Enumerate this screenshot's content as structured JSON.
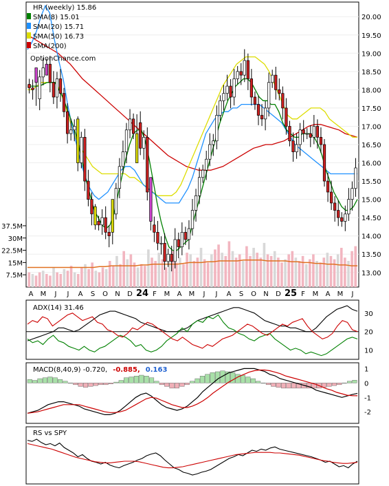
{
  "chart_data": [
    {
      "type": "candlestick",
      "title": "HR (weekly) 15.86",
      "watermark": "OptionChance.com",
      "legend": [
        {
          "label": "SMA(8) 15.01",
          "color": "#008000"
        },
        {
          "label": "SMA(20) 15.71",
          "color": "#1e90ff"
        },
        {
          "label": "SMA(50) 16.73",
          "color": "#dddd00"
        },
        {
          "label": "SMA(200)",
          "color": "#cc0000"
        }
      ],
      "y_ticks": [
        "20.00",
        "19.50",
        "19.00",
        "18.50",
        "18.00",
        "17.50",
        "17.00",
        "16.50",
        "16.00",
        "15.50",
        "15.00",
        "14.50",
        "14.00",
        "13.50",
        "13.00"
      ],
      "ylim": [
        12.6,
        20.4
      ],
      "close": [
        18.05,
        18.0,
        17.75,
        18.35,
        18.6,
        18.7,
        18.2,
        17.8,
        18.3,
        17.9,
        17.4,
        16.8,
        16.9,
        17.0,
        16.0,
        16.7,
        15.5,
        15.0,
        14.6,
        14.4,
        14.3,
        14.5,
        14.1,
        14.0,
        14.6,
        15.3,
        15.9,
        16.3,
        16.9,
        17.2,
        16.8,
        17.1,
        16.4,
        16.7,
        15.2,
        14.3,
        14.1,
        13.8,
        13.8,
        13.3,
        13.5,
        13.3,
        13.9,
        13.7,
        14.1,
        13.9,
        14.2,
        14.7,
        15.1,
        15.6,
        15.8,
        16.1,
        16.5,
        16.6,
        17.3,
        17.7,
        17.9,
        18.1,
        17.8,
        18.3,
        18.5,
        18.4,
        18.8,
        18.3,
        17.8,
        17.6,
        17.3,
        17.2,
        17.5,
        18.2,
        18.4,
        18.0,
        17.9,
        17.5,
        17.0,
        16.6,
        16.3,
        16.5,
        16.9,
        16.8,
        16.8,
        16.7,
        17.0,
        16.7,
        16.5,
        15.5,
        15.2,
        14.9,
        14.7,
        14.5,
        14.4,
        14.6,
        15.0,
        15.3,
        15.86
      ],
      "sma8": [
        18.1,
        18.1,
        18.1,
        18.1,
        18.15,
        18.2,
        18.2,
        18.2,
        18.0,
        17.8,
        17.5,
        17.2,
        16.9,
        16.5,
        16.0,
        15.5,
        15.1,
        14.7,
        14.5,
        14.3,
        14.2,
        14.3,
        14.6,
        15.1,
        15.6,
        16.1,
        16.5,
        16.8,
        16.9,
        16.9,
        16.6,
        16.1,
        15.5,
        14.9,
        14.4,
        14.0,
        13.7,
        13.6,
        13.6,
        13.7,
        13.8,
        13.9,
        14.3,
        14.7,
        15.1,
        15.5,
        15.9,
        16.3,
        16.7,
        17.1,
        17.4,
        17.7,
        17.9,
        18.1,
        18.2,
        18.3,
        18.3,
        18.2,
        18.0,
        17.8,
        17.7,
        17.7,
        17.6,
        17.6,
        17.4,
        17.1,
        16.9,
        16.8,
        16.7,
        16.7,
        16.8,
        16.8,
        16.8,
        16.7,
        16.5,
        16.2,
        15.8,
        15.5,
        15.2,
        15.0,
        14.8,
        14.7,
        14.7,
        14.8,
        15.0
      ],
      "sma20": [
        19.1,
        19.3,
        19.6,
        20.0,
        20.3,
        20.1,
        19.4,
        18.8,
        18.3,
        17.6,
        17.0,
        16.5,
        16.0,
        15.6,
        15.3,
        15.1,
        15.0,
        15.1,
        15.2,
        15.4,
        15.6,
        15.8,
        15.9,
        15.9,
        15.8,
        15.6,
        15.4,
        15.3,
        15.2,
        15.1,
        15.0,
        14.9,
        14.9,
        14.9,
        14.9,
        15.1,
        15.3,
        15.6,
        16.0,
        16.4,
        16.8,
        17.0,
        17.2,
        17.3,
        17.4,
        17.4,
        17.5,
        17.5,
        17.6,
        17.6,
        17.6,
        17.6,
        17.6,
        17.5,
        17.4,
        17.3,
        17.2,
        17.1,
        16.9,
        16.7,
        16.5,
        16.4,
        16.3,
        16.2,
        16.1,
        16.0,
        15.9,
        15.8,
        15.7,
        15.7,
        15.7,
        15.7,
        15.7,
        15.7,
        15.7
      ],
      "sma50": [
        18.0,
        18.0,
        18.1,
        18.2,
        18.2,
        18.2,
        18.2,
        18.0,
        17.6,
        17.2,
        16.8,
        16.5,
        16.3,
        16.1,
        15.9,
        15.8,
        15.7,
        15.7,
        15.7,
        15.7,
        15.7,
        15.7,
        15.6,
        15.6,
        15.5,
        15.4,
        15.3,
        15.2,
        15.1,
        15.1,
        15.1,
        15.1,
        15.2,
        15.4,
        15.7,
        16.0,
        16.3,
        16.6,
        16.9,
        17.2,
        17.5,
        17.8,
        18.1,
        18.3,
        18.5,
        18.7,
        18.8,
        18.9,
        18.9,
        18.9,
        18.8,
        18.7,
        18.5,
        18.2,
        17.9,
        17.6,
        17.3,
        17.2,
        17.2,
        17.3,
        17.4,
        17.5,
        17.5,
        17.5,
        17.4,
        17.2,
        17.1,
        17.0,
        16.9,
        16.8,
        16.7,
        16.7
      ],
      "sma200": [
        19.5,
        19.4,
        19.3,
        19.2,
        19.1,
        19.0,
        18.85,
        18.7,
        18.5,
        18.3,
        18.15,
        18.0,
        17.85,
        17.7,
        17.55,
        17.4,
        17.25,
        17.1,
        16.95,
        16.8,
        16.65,
        16.5,
        16.35,
        16.2,
        16.1,
        16.0,
        15.9,
        15.85,
        15.8,
        15.8,
        15.8,
        15.85,
        15.9,
        16.0,
        16.1,
        16.2,
        16.3,
        16.4,
        16.45,
        16.5,
        16.5,
        16.55,
        16.6,
        16.7,
        16.8,
        16.9,
        17.0,
        17.05,
        17.05,
        17.0,
        16.95,
        16.9,
        16.8,
        16.75,
        16.7
      ],
      "markers": [
        {
          "index": 14,
          "open": 17.2,
          "close": 16.0,
          "color": "#dddd00"
        },
        {
          "index": 19,
          "open": 14.8,
          "close": 14.3,
          "color": "#dddd00"
        },
        {
          "index": 24,
          "open": 14.1,
          "close": 15.0,
          "color": "#dddd00"
        },
        {
          "index": 31,
          "open": 16.8,
          "close": 16.0,
          "color": "#dddd00"
        },
        {
          "index": 35,
          "open": 15.6,
          "close": 14.4,
          "color": "#cc44cc"
        },
        {
          "index": 2,
          "open": 18.6,
          "close": 18.2,
          "color": "#cc44cc"
        },
        {
          "index": 5,
          "open": 18.7,
          "close": 18.4,
          "color": "#cc44cc"
        }
      ]
    },
    {
      "type": "bar",
      "title": "Volume",
      "y_ticks": [
        "37.5M",
        "30M",
        "22.5M",
        "15M",
        "7.5M"
      ],
      "ylim": [
        0,
        40
      ],
      "values": [
        9,
        8,
        7,
        9,
        10,
        8,
        7,
        12,
        9,
        8,
        11,
        10,
        13,
        9,
        8,
        12,
        14,
        11,
        15,
        10,
        9,
        12,
        11,
        16,
        13,
        19,
        14,
        22,
        17,
        20,
        15,
        12,
        14,
        13,
        23,
        18,
        16,
        21,
        17,
        12,
        19,
        22,
        15,
        18,
        14,
        21,
        20,
        16,
        18,
        24,
        17,
        15,
        20,
        23,
        26,
        21,
        19,
        28,
        22,
        18,
        20,
        16,
        25,
        19,
        24,
        21,
        18,
        27,
        20,
        19,
        22,
        18,
        15,
        17,
        20,
        22,
        18,
        16,
        19,
        14,
        17,
        20,
        16,
        15,
        18,
        21,
        19,
        17,
        20,
        24,
        18,
        16,
        22,
        25
      ],
      "sma": [
        12,
        12,
        12,
        12,
        12,
        12,
        12,
        12,
        12,
        12,
        12,
        12,
        12.5,
        12.5,
        13,
        13,
        13,
        13,
        13,
        13.5,
        13.5,
        14,
        14,
        14,
        14,
        14,
        14.5,
        15,
        15,
        15,
        15.5,
        15.5,
        16,
        16,
        16,
        16,
        16.5,
        16.5,
        16.5,
        16.5,
        16,
        16,
        16,
        16,
        15.5,
        15.5,
        15,
        15,
        14.5,
        14.5,
        14,
        14,
        13.5,
        13.5,
        13,
        13
      ]
    },
    {
      "type": "line",
      "title": "ADX(14) 31.46",
      "y_ticks": [
        "30",
        "20",
        "10"
      ],
      "ylim": [
        5,
        37
      ],
      "series": [
        {
          "name": "ADX",
          "color": "#000000",
          "values": [
            15,
            16,
            17,
            18,
            19,
            20,
            22,
            22,
            21,
            20,
            21,
            23,
            25,
            27,
            29,
            30,
            31,
            31,
            30,
            29,
            28,
            27,
            25,
            24,
            23,
            22,
            21,
            20,
            20,
            20,
            21,
            22,
            24,
            26,
            27,
            28,
            29,
            30,
            31,
            32,
            33,
            33,
            32,
            31,
            30,
            28,
            26,
            25,
            24,
            23,
            23,
            22,
            22,
            21,
            20,
            20,
            22,
            25,
            28,
            30,
            32,
            33,
            34,
            32,
            31
          ]
        },
        {
          "name": "+DI",
          "color": "#008000",
          "values": [
            16,
            14,
            15,
            13,
            16,
            18,
            15,
            14,
            12,
            11,
            10,
            12,
            10,
            9,
            11,
            12,
            14,
            16,
            18,
            17,
            15,
            12,
            13,
            10,
            9,
            10,
            12,
            15,
            17,
            19,
            22,
            20,
            24,
            26,
            25,
            28,
            27,
            29,
            25,
            22,
            21,
            19,
            18,
            16,
            15,
            17,
            18,
            19,
            16,
            14,
            12,
            10,
            11,
            10,
            8,
            9,
            8,
            7,
            8,
            10,
            12,
            14,
            16,
            17,
            16
          ]
        },
        {
          "name": "-DI",
          "color": "#cc0000",
          "values": [
            24,
            26,
            25,
            28,
            27,
            23,
            25,
            27,
            29,
            30,
            28,
            26,
            27,
            28,
            25,
            24,
            21,
            20,
            18,
            17,
            19,
            22,
            21,
            23,
            25,
            24,
            22,
            20,
            18,
            16,
            15,
            17,
            15,
            13,
            12,
            11,
            13,
            12,
            14,
            16,
            17,
            18,
            20,
            22,
            24,
            23,
            21,
            19,
            18,
            20,
            22,
            24,
            23,
            25,
            26,
            27,
            23,
            20,
            18,
            16,
            17,
            19,
            23,
            26,
            25,
            21,
            20
          ]
        }
      ],
      "reference_line": 20
    },
    {
      "type": "line",
      "title": "MACD(8,40,9) -0.720,",
      "title_values": [
        {
          "text": "-0.885,",
          "color": "#cc0000"
        },
        {
          "text": "0.163",
          "color": "#1e60d0"
        }
      ],
      "y_ticks": [
        "1",
        "0",
        "-1",
        "-2"
      ],
      "ylim": [
        -2.8,
        1.4
      ],
      "series": [
        {
          "name": "MACD",
          "color": "#000000",
          "values": [
            -2.1,
            -2.0,
            -1.9,
            -1.7,
            -1.5,
            -1.4,
            -1.3,
            -1.3,
            -1.4,
            -1.5,
            -1.6,
            -1.8,
            -1.9,
            -2.0,
            -2.1,
            -2.2,
            -2.2,
            -2.1,
            -1.9,
            -1.6,
            -1.3,
            -1.0,
            -0.8,
            -0.7,
            -0.9,
            -1.2,
            -1.5,
            -1.7,
            -1.8,
            -1.9,
            -1.8,
            -1.6,
            -1.3,
            -1.0,
            -0.6,
            -0.3,
            0.0,
            0.3,
            0.5,
            0.7,
            0.8,
            0.9,
            1.0,
            1.0,
            1.0,
            0.9,
            0.8,
            0.6,
            0.5,
            0.3,
            0.2,
            0.1,
            0.0,
            -0.1,
            -0.2,
            -0.3,
            -0.5,
            -0.6,
            -0.7,
            -0.8,
            -0.9,
            -1.0,
            -0.9,
            -0.8,
            -0.72
          ]
        },
        {
          "name": "Signal",
          "color": "#cc0000",
          "values": [
            -2.1,
            -2.05,
            -2.0,
            -1.9,
            -1.8,
            -1.7,
            -1.6,
            -1.5,
            -1.5,
            -1.5,
            -1.5,
            -1.6,
            -1.7,
            -1.8,
            -1.9,
            -2.0,
            -2.05,
            -2.05,
            -2.0,
            -1.9,
            -1.7,
            -1.5,
            -1.3,
            -1.1,
            -1.0,
            -1.05,
            -1.2,
            -1.35,
            -1.5,
            -1.6,
            -1.7,
            -1.7,
            -1.6,
            -1.45,
            -1.25,
            -1.0,
            -0.7,
            -0.45,
            -0.2,
            0.05,
            0.25,
            0.45,
            0.6,
            0.75,
            0.85,
            0.9,
            0.9,
            0.85,
            0.75,
            0.65,
            0.5,
            0.4,
            0.3,
            0.2,
            0.1,
            0.0,
            -0.1,
            -0.25,
            -0.4,
            -0.5,
            -0.65,
            -0.75,
            -0.85,
            -0.88,
            -0.885
          ]
        }
      ],
      "histogram": [
        0.2,
        0.15,
        0.25,
        0.3,
        0.35,
        0.3,
        0.2,
        0.1,
        0.0,
        -0.1,
        -0.2,
        -0.25,
        -0.2,
        -0.15,
        -0.1,
        -0.1,
        -0.05,
        0.05,
        0.15,
        0.3,
        0.35,
        0.4,
        0.45,
        0.4,
        0.3,
        0.1,
        -0.1,
        -0.2,
        -0.3,
        -0.3,
        -0.2,
        -0.1,
        0.1,
        0.25,
        0.4,
        0.5,
        0.6,
        0.65,
        0.7,
        0.65,
        0.6,
        0.5,
        0.45,
        0.35,
        0.25,
        0.1,
        0.0,
        -0.1,
        -0.2,
        -0.25,
        -0.3,
        -0.3,
        -0.3,
        -0.3,
        -0.3,
        -0.3,
        -0.3,
        -0.3,
        -0.25,
        -0.2,
        -0.15,
        -0.1,
        0.0,
        0.1,
        0.163
      ]
    },
    {
      "type": "line",
      "title": "RS vs SPY",
      "series": [
        {
          "name": "RS",
          "color": "#000000",
          "values": [
            78,
            76,
            80,
            74,
            70,
            72,
            68,
            73,
            65,
            60,
            55,
            48,
            52,
            45,
            40,
            38,
            35,
            38,
            33,
            30,
            28,
            32,
            35,
            38,
            42,
            45,
            50,
            53,
            55,
            50,
            42,
            35,
            28,
            25,
            20,
            18,
            15,
            17,
            20,
            22,
            25,
            30,
            35,
            40,
            45,
            48,
            52,
            50,
            55,
            60,
            58,
            62,
            60,
            64,
            66,
            62,
            60,
            58,
            56,
            54,
            52,
            50,
            48,
            45,
            42,
            38,
            40,
            35,
            30,
            32,
            28,
            35,
            40
          ]
        },
        {
          "name": "RS SMA",
          "color": "#cc0000",
          "values": [
            72,
            70,
            68,
            66,
            64,
            62,
            59,
            56,
            53,
            50,
            47,
            45,
            43,
            41,
            39,
            38,
            37,
            37,
            38,
            39,
            40,
            40,
            40,
            39,
            37,
            35,
            33,
            31,
            29,
            28,
            28,
            29,
            30,
            32,
            34,
            36,
            38,
            40,
            42,
            44,
            46,
            48,
            50,
            52,
            53,
            54,
            55,
            56,
            56,
            56,
            56,
            55,
            55,
            54,
            53,
            52,
            51,
            49,
            47,
            45,
            43,
            41,
            40,
            38,
            37,
            36,
            36,
            37,
            38
          ]
        }
      ]
    }
  ],
  "x_axis": {
    "labels": [
      "A",
      "M",
      "J",
      "J",
      "A",
      "S",
      "O",
      "N",
      "D",
      "24",
      "F",
      "M",
      "A",
      "M",
      "J",
      "J",
      "A",
      "S",
      "O",
      "N",
      "D",
      "25",
      "F",
      "M",
      "A",
      "M",
      "J"
    ],
    "bold_labels": [
      "24",
      "25"
    ]
  }
}
